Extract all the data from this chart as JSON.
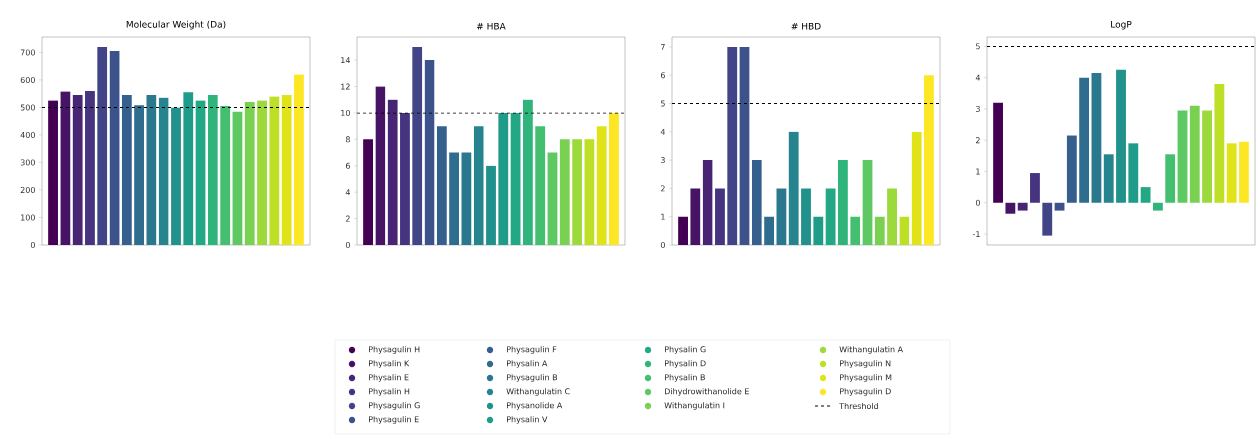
{
  "chart_data": [
    {
      "type": "bar",
      "title": "Molecular Weight (Da)",
      "tick_labels": "y",
      "categories": [
        null,
        null,
        null,
        null,
        null,
        null,
        null,
        null,
        null,
        null,
        null,
        null,
        null,
        null,
        null,
        null,
        null,
        null,
        null,
        null,
        null
      ],
      "values": [
        525,
        558,
        545,
        560,
        720,
        705,
        545,
        508,
        545,
        535,
        500,
        555,
        525,
        545,
        505,
        485,
        520,
        525,
        540,
        545,
        620
      ],
      "colors": [
        "#440154",
        "#471365",
        "#482475",
        "#463480",
        "#414487",
        "#3b528b",
        "#355f8d",
        "#2f6c8e",
        "#2a788e",
        "#25848e",
        "#21918c",
        "#1e9c89",
        "#22a884",
        "#2fb47c",
        "#44bf70",
        "#5ec962",
        "#7ad151",
        "#9bd93c",
        "#bddf26",
        "#dfe318",
        "#fde725"
      ],
      "ylim": [
        0,
        756
      ],
      "yticks": [
        0,
        100,
        200,
        300,
        400,
        500,
        600,
        700
      ],
      "ref_lines": [
        {
          "axis": "y",
          "value": 500,
          "color": "#000000",
          "line_style": "dashed"
        }
      ]
    },
    {
      "type": "bar",
      "title": "# HBA",
      "tick_labels": "y",
      "legend": "bottom",
      "categories": [
        null,
        null,
        null,
        null,
        null,
        null,
        null,
        null,
        null,
        null,
        null,
        null,
        null,
        null,
        null,
        null,
        null,
        null,
        null,
        null,
        null
      ],
      "series": [
        {
          "name": "Physagulin H",
          "color": "#440154",
          "values": [
            8,
            null,
            null,
            null,
            null,
            null,
            null,
            null,
            null,
            null,
            null,
            null,
            null,
            null,
            null,
            null,
            null,
            null,
            null,
            null,
            null
          ]
        },
        {
          "name": "Physalin K",
          "color": "#471365",
          "values": [
            null,
            12,
            null,
            null,
            null,
            null,
            null,
            null,
            null,
            null,
            null,
            null,
            null,
            null,
            null,
            null,
            null,
            null,
            null,
            null,
            null
          ]
        },
        {
          "name": "Physalin E",
          "color": "#482475",
          "values": [
            null,
            null,
            11,
            null,
            null,
            null,
            null,
            null,
            null,
            null,
            null,
            null,
            null,
            null,
            null,
            null,
            null,
            null,
            null,
            null,
            null
          ]
        },
        {
          "name": "Physalin H",
          "color": "#463480",
          "values": [
            null,
            null,
            null,
            10,
            null,
            null,
            null,
            null,
            null,
            null,
            null,
            null,
            null,
            null,
            null,
            null,
            null,
            null,
            null,
            null,
            null
          ]
        },
        {
          "name": "Physagulin G",
          "color": "#414487",
          "values": [
            null,
            null,
            null,
            null,
            15,
            null,
            null,
            null,
            null,
            null,
            null,
            null,
            null,
            null,
            null,
            null,
            null,
            null,
            null,
            null,
            null
          ]
        },
        {
          "name": "Physagulin E",
          "color": "#3b528b",
          "values": [
            null,
            null,
            null,
            null,
            null,
            14,
            null,
            null,
            null,
            null,
            null,
            null,
            null,
            null,
            null,
            null,
            null,
            null,
            null,
            null,
            null
          ]
        },
        {
          "name": "Physagulin F",
          "color": "#355f8d",
          "values": [
            null,
            null,
            null,
            null,
            null,
            null,
            9,
            null,
            null,
            null,
            null,
            null,
            null,
            null,
            null,
            null,
            null,
            null,
            null,
            null,
            null
          ]
        },
        {
          "name": "Physalin A",
          "color": "#2f6c8e",
          "values": [
            null,
            null,
            null,
            null,
            null,
            null,
            null,
            7,
            null,
            null,
            null,
            null,
            null,
            null,
            null,
            null,
            null,
            null,
            null,
            null,
            null
          ]
        },
        {
          "name": "Physagulin B",
          "color": "#2a788e",
          "values": [
            null,
            null,
            null,
            null,
            null,
            null,
            null,
            null,
            7,
            null,
            null,
            null,
            null,
            null,
            null,
            null,
            null,
            null,
            null,
            null,
            null
          ]
        },
        {
          "name": "Withangulatin C",
          "color": "#25848e",
          "values": [
            null,
            null,
            null,
            null,
            null,
            null,
            null,
            null,
            null,
            9,
            null,
            null,
            null,
            null,
            null,
            null,
            null,
            null,
            null,
            null,
            null
          ]
        },
        {
          "name": "Physanolide A",
          "color": "#21918c",
          "values": [
            null,
            null,
            null,
            null,
            null,
            null,
            null,
            null,
            null,
            null,
            6,
            null,
            null,
            null,
            null,
            null,
            null,
            null,
            null,
            null,
            null
          ]
        },
        {
          "name": "Physalin V",
          "color": "#1e9c89",
          "values": [
            null,
            null,
            null,
            null,
            null,
            null,
            null,
            null,
            null,
            null,
            null,
            10,
            null,
            null,
            null,
            null,
            null,
            null,
            null,
            null,
            null
          ]
        },
        {
          "name": "Physalin G",
          "color": "#22a884",
          "values": [
            null,
            null,
            null,
            null,
            null,
            null,
            null,
            null,
            null,
            null,
            null,
            null,
            10,
            null,
            null,
            null,
            null,
            null,
            null,
            null,
            null
          ]
        },
        {
          "name": "Physalin D",
          "color": "#2fb47c",
          "values": [
            null,
            null,
            null,
            null,
            null,
            null,
            null,
            null,
            null,
            null,
            null,
            null,
            null,
            11,
            null,
            null,
            null,
            null,
            null,
            null,
            null
          ]
        },
        {
          "name": "Physalin B",
          "color": "#44bf70",
          "values": [
            null,
            null,
            null,
            null,
            null,
            null,
            null,
            null,
            null,
            null,
            null,
            null,
            null,
            null,
            9,
            null,
            null,
            null,
            null,
            null,
            null
          ]
        },
        {
          "name": "Dihydrowithanolide E",
          "color": "#5ec962",
          "values": [
            null,
            null,
            null,
            null,
            null,
            null,
            null,
            null,
            null,
            null,
            null,
            null,
            null,
            null,
            null,
            7,
            null,
            null,
            null,
            null,
            null
          ]
        },
        {
          "name": "Withangulatin I",
          "color": "#7ad151",
          "values": [
            null,
            null,
            null,
            null,
            null,
            null,
            null,
            null,
            null,
            null,
            null,
            null,
            null,
            null,
            null,
            null,
            8,
            null,
            null,
            null,
            null
          ]
        },
        {
          "name": "Withangulatin A",
          "color": "#9bd93c",
          "values": [
            null,
            null,
            null,
            null,
            null,
            null,
            null,
            null,
            null,
            null,
            null,
            null,
            null,
            null,
            null,
            null,
            null,
            8,
            null,
            null,
            null
          ]
        },
        {
          "name": "Physagulin N",
          "color": "#bddf26",
          "values": [
            null,
            null,
            null,
            null,
            null,
            null,
            null,
            null,
            null,
            null,
            null,
            null,
            null,
            null,
            null,
            null,
            null,
            null,
            8,
            null,
            null
          ]
        },
        {
          "name": "Physagulin M",
          "color": "#dfe318",
          "values": [
            null,
            null,
            null,
            null,
            null,
            null,
            null,
            null,
            null,
            null,
            null,
            null,
            null,
            null,
            null,
            null,
            null,
            null,
            null,
            9,
            null
          ]
        },
        {
          "name": "Physagulin D",
          "color": "#fde725",
          "values": [
            null,
            null,
            null,
            null,
            null,
            null,
            null,
            null,
            null,
            null,
            null,
            null,
            null,
            null,
            null,
            null,
            null,
            null,
            null,
            null,
            10
          ]
        }
      ],
      "ylim": [
        0,
        15.75
      ],
      "yticks": [
        0,
        2,
        4,
        6,
        8,
        10,
        12,
        14
      ],
      "ref_lines": [
        {
          "axis": "y",
          "value": 10,
          "label": "Threshold",
          "color": "#000000",
          "line_style": "dashed"
        }
      ]
    },
    {
      "type": "bar",
      "title": "# HBD",
      "tick_labels": "y",
      "categories": [
        null,
        null,
        null,
        null,
        null,
        null,
        null,
        null,
        null,
        null,
        null,
        null,
        null,
        null,
        null,
        null,
        null,
        null,
        null,
        null,
        null
      ],
      "values": [
        1,
        2,
        3,
        2,
        7,
        7,
        3,
        1,
        2,
        4,
        2,
        1,
        2,
        3,
        1,
        3,
        1,
        2,
        1,
        4,
        6
      ],
      "colors": [
        "#440154",
        "#471365",
        "#482475",
        "#463480",
        "#414487",
        "#3b528b",
        "#355f8d",
        "#2f6c8e",
        "#2a788e",
        "#25848e",
        "#21918c",
        "#1e9c89",
        "#22a884",
        "#2fb47c",
        "#44bf70",
        "#5ec962",
        "#7ad151",
        "#9bd93c",
        "#bddf26",
        "#dfe318",
        "#fde725"
      ],
      "ylim": [
        0,
        7.35
      ],
      "yticks": [
        0,
        1,
        2,
        3,
        4,
        5,
        6,
        7
      ],
      "ref_lines": [
        {
          "axis": "y",
          "value": 5,
          "color": "#000000",
          "line_style": "dashed"
        }
      ]
    },
    {
      "type": "bar",
      "title": "LogP",
      "tick_labels": "y",
      "categories": [
        null,
        null,
        null,
        null,
        null,
        null,
        null,
        null,
        null,
        null,
        null,
        null,
        null,
        null,
        null,
        null,
        null,
        null,
        null,
        null,
        null
      ],
      "values": [
        3.2,
        -0.35,
        -0.25,
        0.95,
        -1.05,
        -0.25,
        2.15,
        4.0,
        4.15,
        1.55,
        4.25,
        1.9,
        0.5,
        -0.25,
        1.55,
        2.95,
        3.1,
        2.95,
        3.8,
        1.9,
        1.95
      ],
      "colors": [
        "#440154",
        "#471365",
        "#482475",
        "#463480",
        "#414487",
        "#3b528b",
        "#355f8d",
        "#2f6c8e",
        "#2a788e",
        "#25848e",
        "#21918c",
        "#1e9c89",
        "#22a884",
        "#2fb47c",
        "#44bf70",
        "#5ec962",
        "#7ad151",
        "#9bd93c",
        "#bddf26",
        "#dfe318",
        "#fde725"
      ],
      "ylim": [
        -1.35,
        5.3
      ],
      "yticks": [
        -1,
        0,
        1,
        2,
        3,
        4,
        5
      ],
      "ref_lines": [
        {
          "axis": "y",
          "value": 5,
          "color": "#000000",
          "line_style": "dashed"
        }
      ]
    }
  ]
}
